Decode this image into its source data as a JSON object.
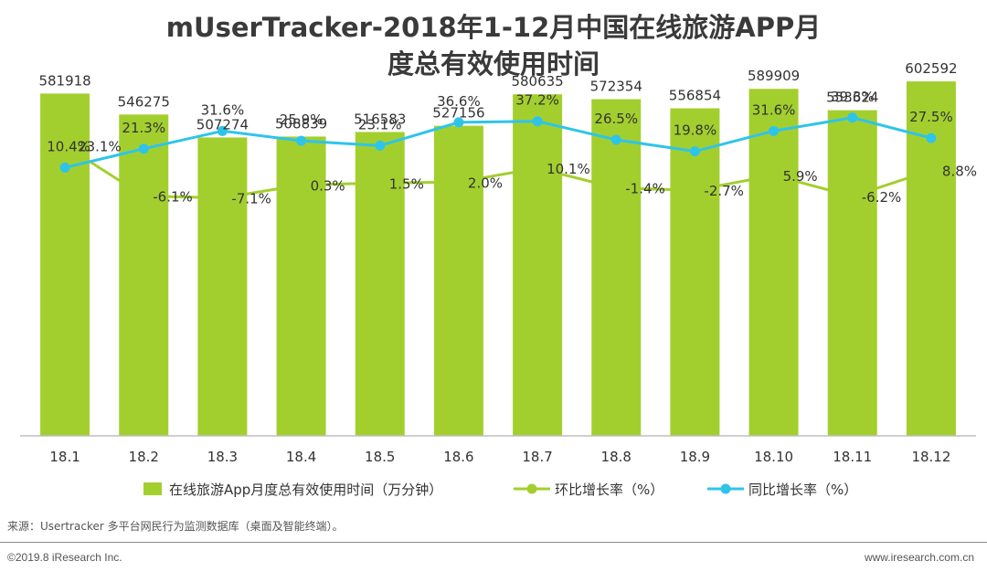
{
  "header": {
    "title_line1": "mUserTracker-2018年1-12月中国在线旅游APP月",
    "title_line2": "度总有效使用时间"
  },
  "chart_data": {
    "type": "bar",
    "title": "mUserTracker-2018年1-12月中国在线旅游APP月度总有效使用时间",
    "categories": [
      "18.1",
      "18.2",
      "18.3",
      "18.4",
      "18.5",
      "18.6",
      "18.7",
      "18.8",
      "18.9",
      "18.10",
      "18.11",
      "18.12"
    ],
    "series": [
      {
        "name": "在线旅游App月度总有效使用时间（万分钟）",
        "kind": "bar",
        "color": "#a3cf2e",
        "values": [
          581918,
          546275,
          507274,
          508839,
          516583,
          527156,
          580635,
          572354,
          556854,
          589909,
          553624,
          602592
        ]
      },
      {
        "name": "环比增长率（%）",
        "kind": "line",
        "color": "#a3cf2e",
        "values": [
          23.1,
          -6.1,
          -7.1,
          0.3,
          1.5,
          2.0,
          10.1,
          -1.4,
          -2.7,
          5.9,
          -6.2,
          8.8
        ],
        "labels": [
          "23.1%",
          "-6.1%",
          "-7.1%",
          "0.3%",
          "1.5%",
          "2.0%",
          "10.1%",
          "-1.4%",
          "-2.7%",
          "5.9%",
          "-6.2%",
          "8.8%"
        ]
      },
      {
        "name": "同比增长率（%）",
        "kind": "line",
        "color": "#2ec4ea",
        "values": [
          10.4,
          21.3,
          31.6,
          25.9,
          23.1,
          36.6,
          37.2,
          26.5,
          19.8,
          31.6,
          39.3,
          27.5
        ],
        "labels": [
          "10.4%",
          "21.3%",
          "31.6%",
          "25.9%",
          "23.1%",
          "36.6%",
          "37.2%",
          "26.5%",
          "19.8%",
          "31.6%",
          "39.3%",
          "27.5%"
        ]
      }
    ],
    "bar_labels": [
      "581918",
      "546275",
      "507274",
      "508839",
      "516583",
      "527156",
      "580635",
      "572354",
      "556854",
      "589909",
      "553624",
      "602592"
    ],
    "ylim": [
      0,
      640000
    ],
    "line_ylim": [
      -10,
      45
    ],
    "xlabel": "",
    "ylabel": "",
    "legend_position": "bottom-center",
    "grid": false
  },
  "footer": {
    "source": "来源：Usertracker 多平台网民行为监测数据库（桌面及智能终端）。",
    "copyright": "©2019.8 iResearch Inc.",
    "website": "www.iresearch.com.cn"
  }
}
